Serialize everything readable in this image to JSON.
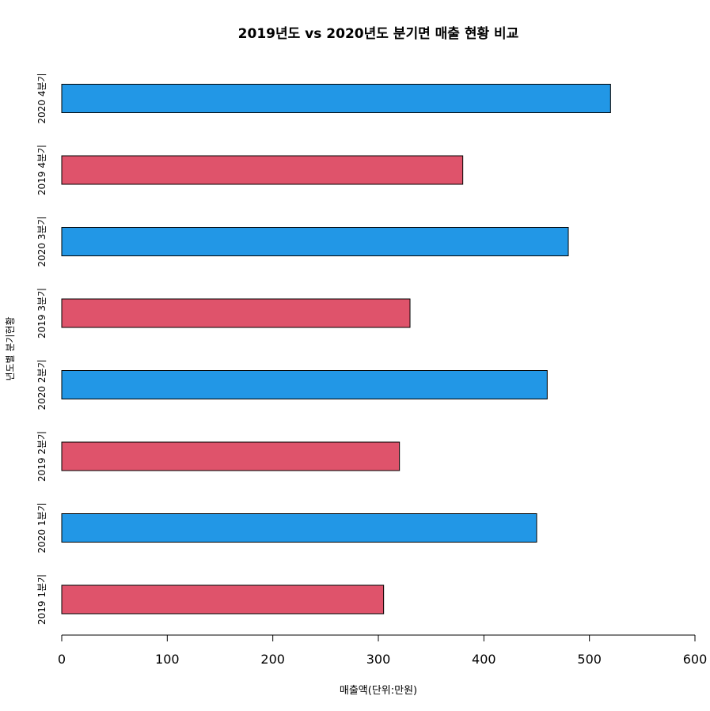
{
  "chart_data": {
    "type": "bar",
    "orientation": "horizontal",
    "title": "2019년도 vs 2020년도 분기면 매출 현황 비교",
    "xlabel": "매출액(단위:만원)",
    "ylabel": "년도별 분기현황",
    "categories": [
      "2019 1분기",
      "2020 1분기",
      "2019 2분기",
      "2020 2분기",
      "2019 3분기",
      "2020 3분기",
      "2019 4분기",
      "2020 4분기"
    ],
    "values": [
      305,
      450,
      320,
      460,
      330,
      480,
      380,
      520
    ],
    "bar_colors": [
      "#DF536B",
      "#2297E6",
      "#DF536B",
      "#2297E6",
      "#DF536B",
      "#2297E6",
      "#DF536B",
      "#2297E6"
    ],
    "xlim": [
      0,
      600
    ],
    "xticks": [
      0,
      100,
      200,
      300,
      400,
      500,
      600
    ],
    "grid": false,
    "legend": "none"
  }
}
